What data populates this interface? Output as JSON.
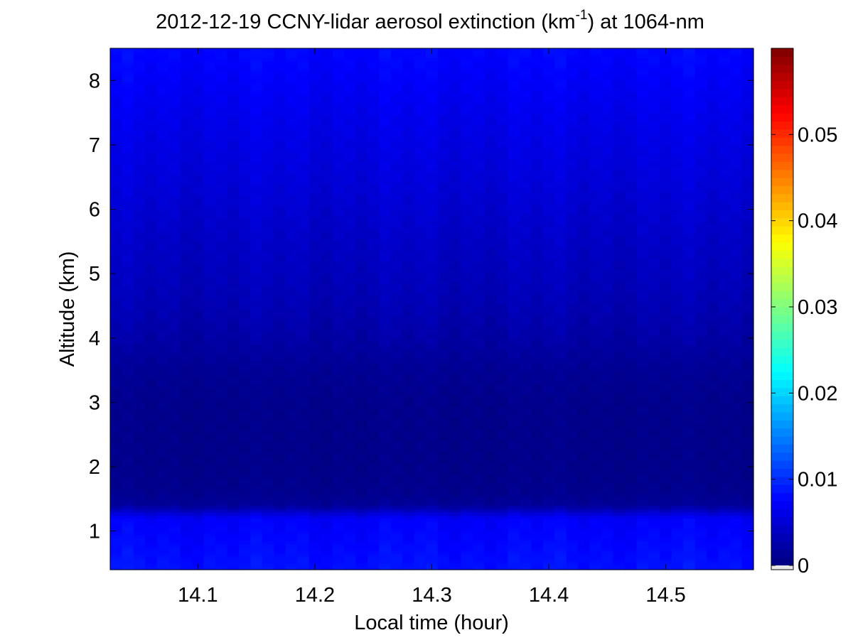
{
  "chart_data": {
    "type": "heatmap",
    "title": {
      "prefix": "2012-12-19 CCNY-lidar aerosol extinction (km",
      "superscript": "-1",
      "suffix": ") at 1064-nm"
    },
    "xlabel": "Local time (hour)",
    "ylabel": "Altitude (km)",
    "xlim": [
      14.025,
      14.575
    ],
    "ylim": [
      0.4,
      8.5
    ],
    "x_ticks": [
      14.1,
      14.2,
      14.3,
      14.4,
      14.5
    ],
    "x_tick_labels": [
      "14.1",
      "14.2",
      "14.3",
      "14.4",
      "14.5"
    ],
    "y_ticks": [
      1,
      2,
      3,
      4,
      5,
      6,
      7,
      8
    ],
    "y_tick_labels": [
      "1",
      "2",
      "3",
      "4",
      "5",
      "6",
      "7",
      "8"
    ],
    "grid": false,
    "colorbar": {
      "colormap": "jet",
      "clim": [
        0,
        0.06
      ],
      "ticks": [
        0,
        0.01,
        0.02,
        0.03,
        0.04,
        0.05
      ],
      "tick_labels": [
        "0",
        "0.01",
        "0.02",
        "0.03",
        "0.04",
        "0.05"
      ]
    },
    "extinction_profile": {
      "altitude_km": [
        0.4,
        0.8,
        1.2,
        1.4,
        1.6,
        2.0,
        2.5,
        3.0,
        3.5,
        4.0,
        4.5,
        5.0,
        5.5,
        6.0,
        6.5,
        7.0,
        7.5,
        8.0,
        8.5
      ],
      "extinction_km-1": [
        0.0085,
        0.0078,
        0.0072,
        0.0015,
        0.0008,
        0.0006,
        0.0006,
        0.0007,
        0.0012,
        0.0022,
        0.003,
        0.0036,
        0.0041,
        0.0047,
        0.0053,
        0.0058,
        0.0064,
        0.0071,
        0.0078
      ]
    }
  }
}
